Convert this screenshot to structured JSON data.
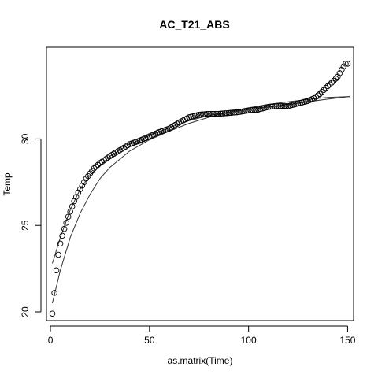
{
  "chart_data": {
    "type": "scatter",
    "title": "AC_T21_ABS",
    "xlabel": "as.matrix(Time)",
    "ylabel": "Temp",
    "xlim": [
      -2,
      153
    ],
    "ylim": [
      19.5,
      35.3
    ],
    "xticks": [
      0,
      50,
      100,
      150
    ],
    "yticks": [
      20,
      25,
      30
    ],
    "grid": false,
    "legend": "none",
    "point_marker": "open-circle",
    "anchor_points": [
      [
        1,
        19.9
      ],
      [
        2,
        21.1
      ],
      [
        3,
        22.4
      ],
      [
        4,
        23.3
      ],
      [
        5,
        23.95
      ],
      [
        6,
        24.4
      ],
      [
        7,
        24.8
      ],
      [
        8,
        25.15
      ],
      [
        9,
        25.5
      ],
      [
        10,
        25.8
      ],
      [
        11,
        26.1
      ],
      [
        12,
        26.4
      ],
      [
        13,
        26.65
      ],
      [
        14,
        26.9
      ],
      [
        15,
        27.1
      ],
      [
        16,
        27.3
      ],
      [
        17,
        27.5
      ],
      [
        18,
        27.7
      ],
      [
        19,
        27.85
      ],
      [
        20,
        28.0
      ],
      [
        22,
        28.3
      ],
      [
        25,
        28.6
      ],
      [
        30,
        29.0
      ],
      [
        35,
        29.35
      ],
      [
        40,
        29.7
      ],
      [
        45,
        29.9
      ],
      [
        50,
        30.15
      ],
      [
        55,
        30.4
      ],
      [
        60,
        30.6
      ],
      [
        65,
        30.95
      ],
      [
        70,
        31.25
      ],
      [
        75,
        31.4
      ],
      [
        80,
        31.45
      ],
      [
        85,
        31.45
      ],
      [
        90,
        31.5
      ],
      [
        95,
        31.55
      ],
      [
        100,
        31.65
      ],
      [
        105,
        31.7
      ],
      [
        110,
        31.85
      ],
      [
        115,
        31.9
      ],
      [
        120,
        31.9
      ],
      [
        125,
        32.05
      ],
      [
        130,
        32.2
      ],
      [
        133,
        32.35
      ],
      [
        136,
        32.6
      ],
      [
        139,
        32.95
      ],
      [
        142,
        33.25
      ],
      [
        145,
        33.6
      ],
      [
        147,
        34.0
      ],
      [
        148,
        34.2
      ],
      [
        149,
        34.35
      ],
      [
        150,
        34.35
      ],
      [
        151,
        34.3
      ],
      [
        152,
        34.2
      ]
    ],
    "series": [
      {
        "kind": "points",
        "x": [
          1,
          150
        ],
        "step": 1
      },
      {
        "kind": "line",
        "x": [
          1,
          5,
          10,
          15,
          20,
          30,
          40,
          50,
          60,
          70,
          80,
          90,
          100,
          110,
          120,
          130,
          140,
          151
        ],
        "y": [
          22.8,
          24.3,
          25.9,
          27.1,
          27.9,
          29.0,
          29.7,
          30.2,
          30.65,
          31.05,
          31.35,
          31.55,
          31.7,
          31.85,
          32.0,
          32.15,
          32.3,
          32.45
        ]
      },
      {
        "kind": "line",
        "x": [
          1,
          5,
          10,
          15,
          20,
          25,
          30,
          40,
          50,
          60,
          70,
          80,
          90,
          100,
          110,
          120,
          130,
          140,
          151
        ],
        "y": [
          20.5,
          22.4,
          24.3,
          25.7,
          26.8,
          27.7,
          28.35,
          29.3,
          29.95,
          30.45,
          30.9,
          31.25,
          31.55,
          31.8,
          32.0,
          32.15,
          32.28,
          32.4,
          32.45
        ]
      }
    ]
  }
}
